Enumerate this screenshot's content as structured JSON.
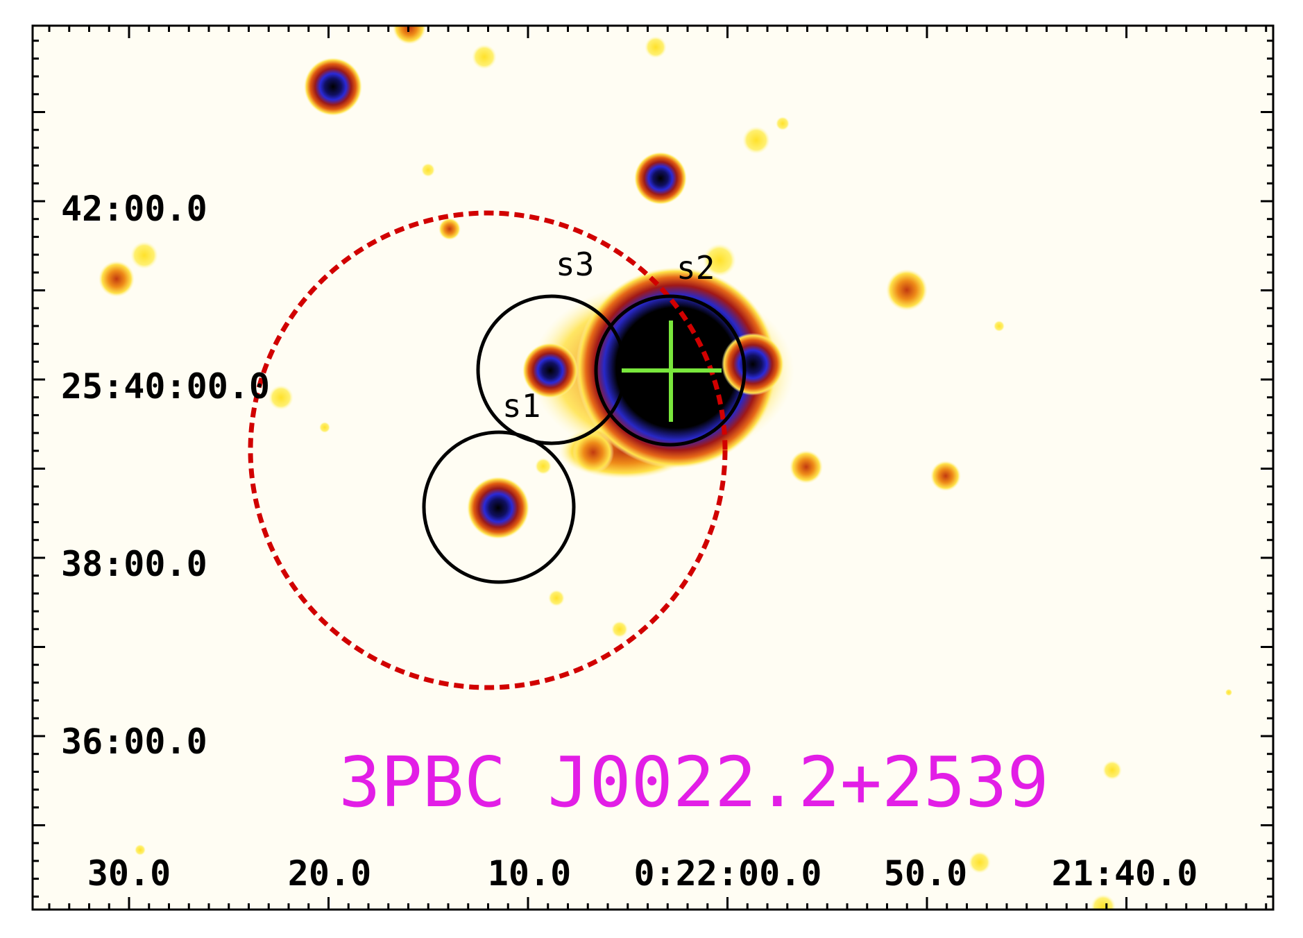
{
  "figure": {
    "title": "3PBC J0022.2+2539",
    "title_color": "#e21ee6",
    "background": "#fffdf3",
    "frame_color": "#000000",
    "dec_labels": [
      "42:00.0",
      "25:40:00.0",
      "38:00.0",
      "36:00.0"
    ],
    "ra_labels": [
      "30.0",
      "20.0",
      "10.0",
      "0:22:00.0",
      "50.0",
      "21:40.0"
    ],
    "source_labels": [
      "s1",
      "s2",
      "s3"
    ],
    "error_circle_color": "#d10000",
    "marker_color": "#79e73c",
    "source_circle_color": "#000000"
  }
}
